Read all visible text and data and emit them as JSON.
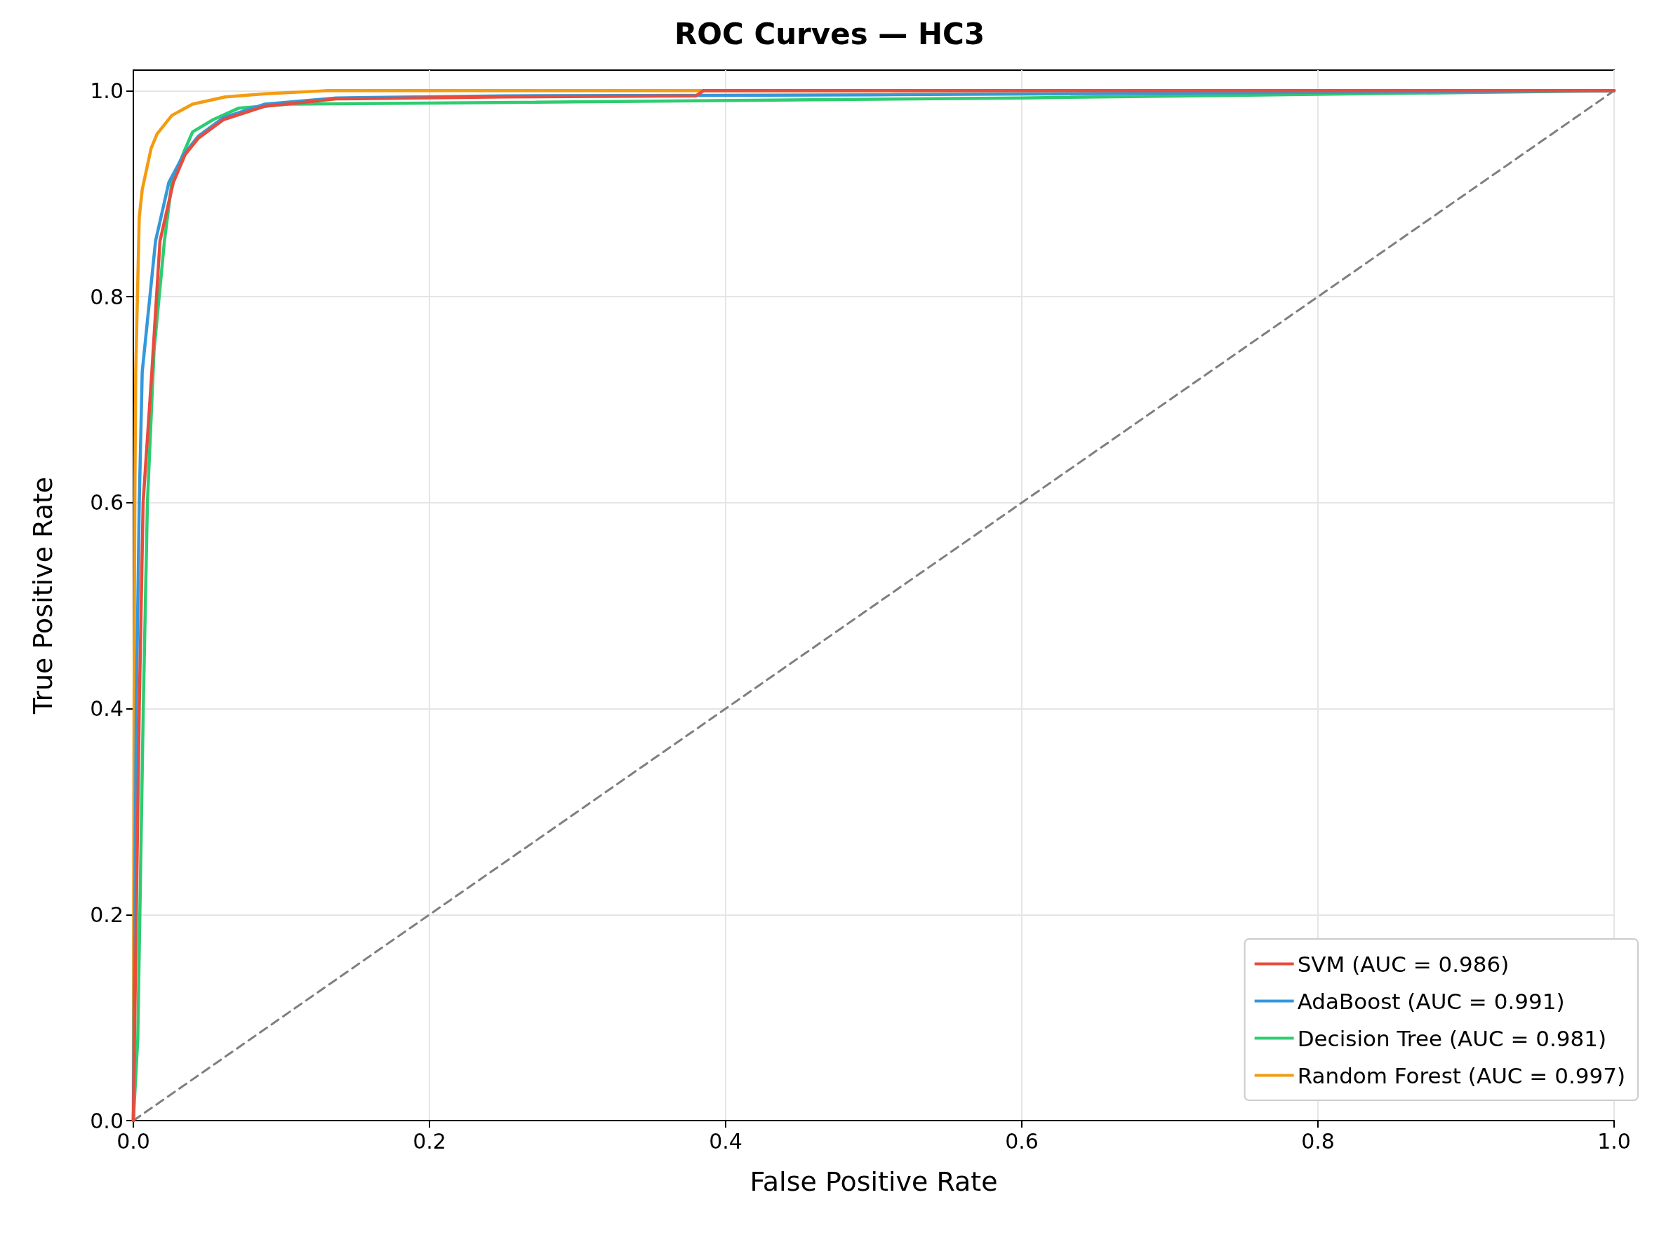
{
  "chart_data": {
    "type": "line",
    "title": "ROC Curves — HC3",
    "xlabel": "False Positive Rate",
    "ylabel": "True Positive Rate",
    "xlim": [
      0,
      1
    ],
    "ylim": [
      0,
      1.02
    ],
    "xticks": [
      {
        "value": 0,
        "label": "0.0"
      },
      {
        "value": 0.2,
        "label": "0.2"
      },
      {
        "value": 0.4,
        "label": "0.4"
      },
      {
        "value": 0.6,
        "label": "0.6"
      },
      {
        "value": 0.8,
        "label": "0.8"
      },
      {
        "value": 1,
        "label": "1.0"
      }
    ],
    "yticks": [
      {
        "value": 0,
        "label": "0.0"
      },
      {
        "value": 0.2,
        "label": "0.2"
      },
      {
        "value": 0.4,
        "label": "0.4"
      },
      {
        "value": 0.6,
        "label": "0.6"
      },
      {
        "value": 0.8,
        "label": "0.8"
      },
      {
        "value": 1,
        "label": "1.0"
      }
    ],
    "grid": true,
    "legend": "bottom right",
    "marker": "none",
    "line_style": "solid",
    "series": [
      {
        "name": "SVM (AUC = 0.986)",
        "color": "#e74c3c",
        "x": [
          0,
          0.004,
          0.0066,
          0.0125,
          0.018,
          0.027,
          0.035,
          0.044,
          0.061,
          0.089,
          0.137,
          0.25,
          0.38,
          0.385,
          1
        ],
        "values": [
          0,
          0.4,
          0.6,
          0.727,
          0.854,
          0.911,
          0.938,
          0.954,
          0.972,
          0.985,
          0.992,
          0.994,
          0.995,
          1,
          1
        ]
      },
      {
        "name": "AdaBoost (AUC = 0.991)",
        "color": "#3498db",
        "x": [
          0,
          0.002,
          0.004,
          0.006,
          0.015,
          0.024,
          0.034,
          0.044,
          0.061,
          0.089,
          0.137,
          0.25,
          0.5,
          1
        ],
        "values": [
          0,
          0.4,
          0.6,
          0.727,
          0.854,
          0.911,
          0.938,
          0.956,
          0.974,
          0.987,
          0.993,
          0.995,
          0.996,
          1
        ]
      },
      {
        "name": "Decision Tree (AUC = 0.981)",
        "color": "#2ecc71",
        "x": [
          0,
          0.003,
          0.0067,
          0.0095,
          0.014,
          0.021,
          0.026,
          0.034,
          0.04,
          0.054,
          0.071,
          0.105,
          0.2,
          0.6,
          1
        ],
        "values": [
          0,
          0.079,
          0.4,
          0.6,
          0.748,
          0.854,
          0.911,
          0.94,
          0.96,
          0.972,
          0.983,
          0.987,
          0.988,
          0.993,
          1
        ]
      },
      {
        "name": "Random Forest (AUC = 0.997)",
        "color": "#f39c12",
        "x": [
          0,
          0.0005,
          0.001,
          0.0016,
          0.004,
          0.006,
          0.012,
          0.016,
          0.026,
          0.04,
          0.062,
          0.089,
          0.13,
          1
        ],
        "values": [
          0,
          0.4,
          0.6,
          0.727,
          0.877,
          0.904,
          0.944,
          0.958,
          0.976,
          0.987,
          0.994,
          0.997,
          1,
          1
        ]
      },
      {
        "type": "line",
        "color": "#7f7f7f",
        "line_style": "dashed",
        "x": [
          0,
          1
        ],
        "values": [
          0,
          1
        ]
      }
    ]
  }
}
